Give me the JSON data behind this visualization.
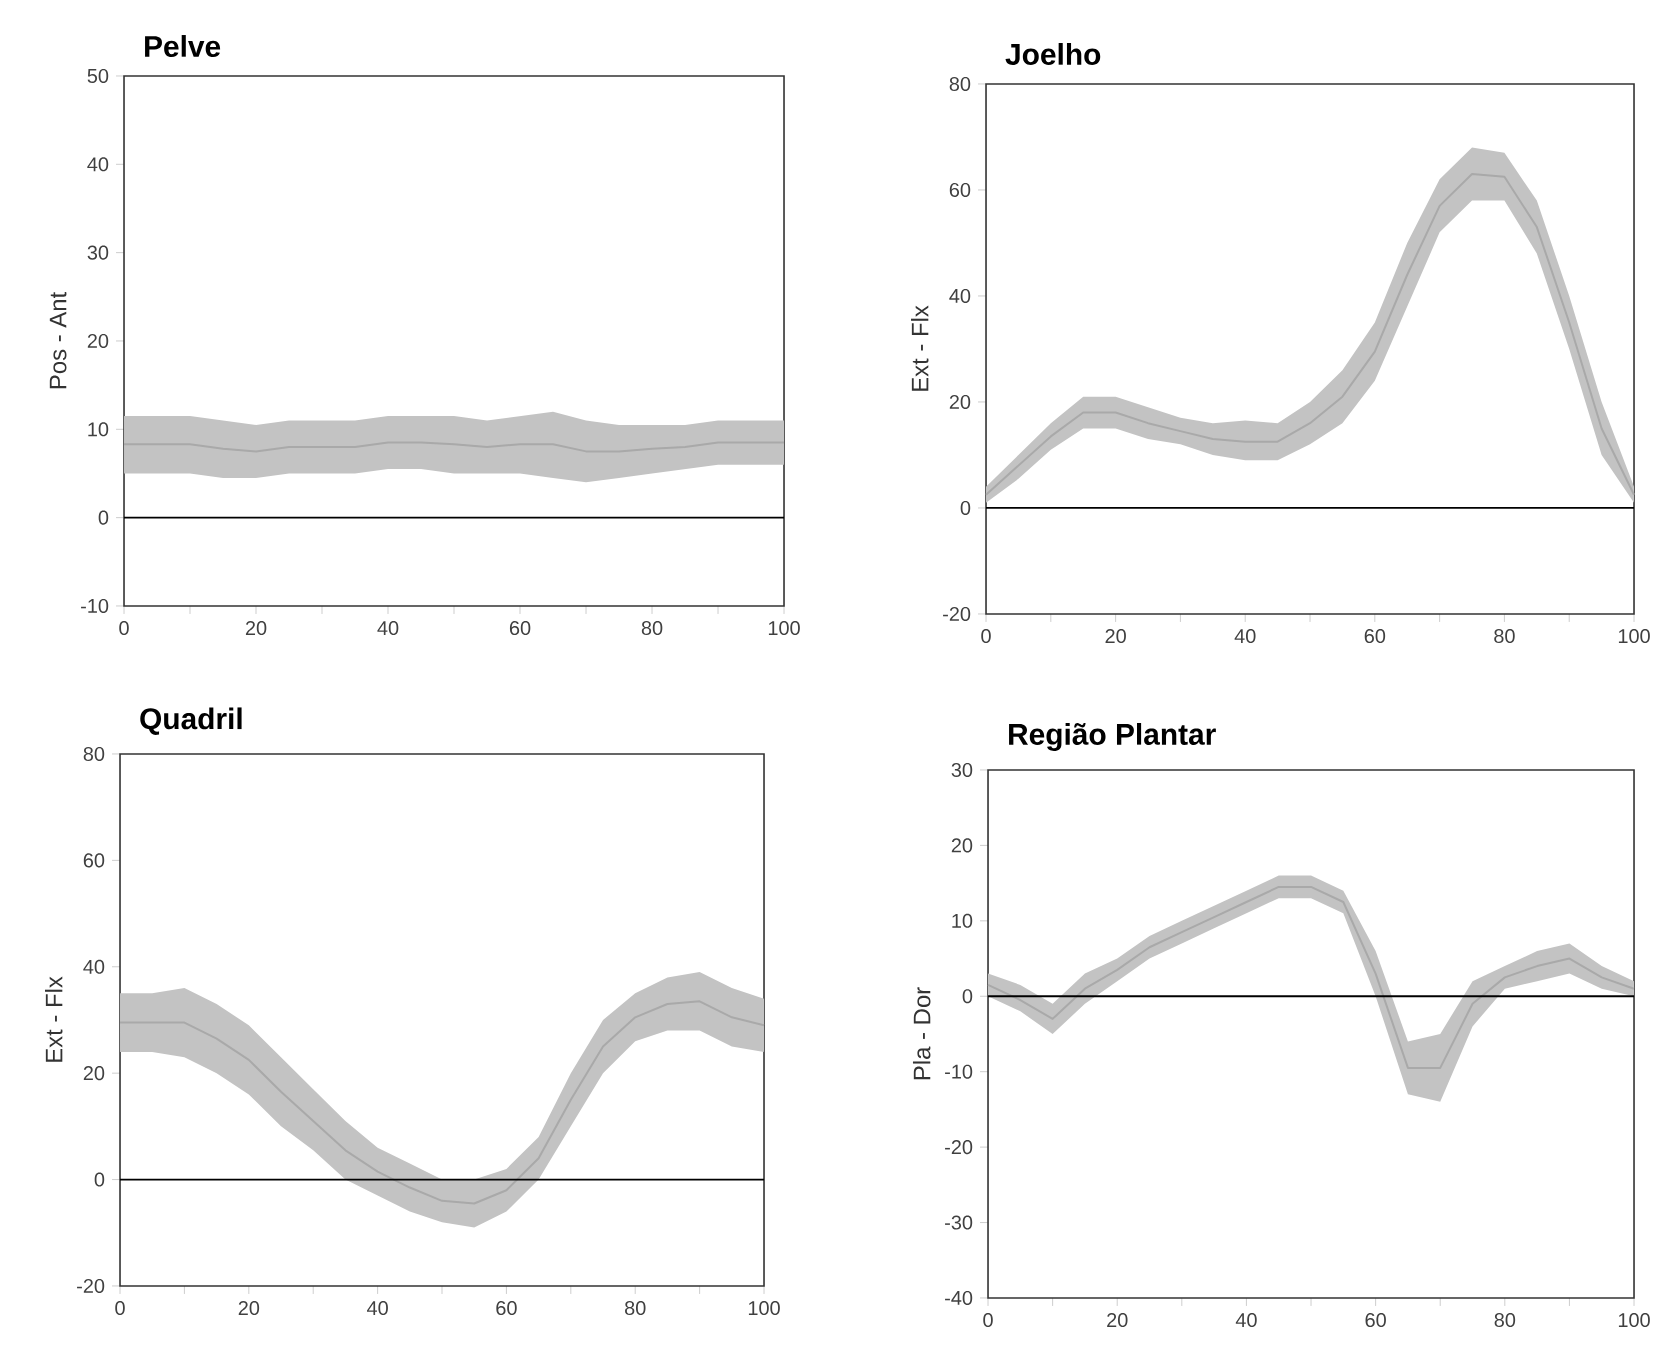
{
  "chart_data": [
    {
      "type": "line",
      "title": "Pelve",
      "ylabel": "Pos - Ant",
      "xlim": [
        0,
        100
      ],
      "ylim": [
        -10,
        50
      ],
      "xticks": [
        0,
        {
          "value": 10,
          "label": null
        },
        20,
        {
          "value": 30,
          "label": null
        },
        40,
        {
          "value": 50,
          "label": null
        },
        60,
        {
          "value": 70,
          "label": null
        },
        80,
        {
          "value": 90,
          "label": null
        },
        100
      ],
      "yticks": [
        -10,
        0,
        10,
        20,
        30,
        40,
        50
      ],
      "ref_lines": [
        {
          "axis": "y",
          "value": 0,
          "color": "#000000"
        }
      ],
      "series": [
        {
          "color": "#a9a9a9",
          "x": [
            0,
            5,
            10,
            15,
            20,
            25,
            30,
            35,
            40,
            45,
            50,
            55,
            60,
            65,
            70,
            75,
            80,
            85,
            90,
            95,
            100
          ],
          "values": [
            8.3,
            8.3,
            8.3,
            7.8,
            7.5,
            8,
            8,
            8,
            8.5,
            8.5,
            8.3,
            8,
            8.3,
            8.3,
            7.5,
            7.5,
            7.8,
            8,
            8.5,
            8.5,
            8.5
          ],
          "lower": [
            5,
            5,
            5,
            4.5,
            4.5,
            5,
            5,
            5,
            5.5,
            5.5,
            5,
            5,
            5,
            4.5,
            4,
            4.5,
            5,
            5.5,
            6,
            6,
            6
          ],
          "upper": [
            11.5,
            11.5,
            11.5,
            11,
            10.5,
            11,
            11,
            11,
            11.5,
            11.5,
            11.5,
            11,
            11.5,
            12,
            11,
            10.5,
            10.5,
            10.5,
            11,
            11,
            11
          ]
        }
      ]
    },
    {
      "type": "line",
      "title": "Joelho",
      "ylabel": "Ext - Flx",
      "xlim": [
        0,
        100
      ],
      "ylim": [
        -20,
        80
      ],
      "xticks": [
        0,
        {
          "value": 10,
          "label": null
        },
        20,
        {
          "value": 30,
          "label": null
        },
        40,
        {
          "value": 50,
          "label": null
        },
        60,
        {
          "value": 70,
          "label": null
        },
        80,
        {
          "value": 90,
          "label": null
        },
        100
      ],
      "yticks": [
        -20,
        0,
        20,
        40,
        60,
        80
      ],
      "ref_lines": [
        {
          "axis": "y",
          "value": 0,
          "color": "#000000"
        }
      ],
      "series": [
        {
          "color": "#a9a9a9",
          "x": [
            0,
            5,
            10,
            15,
            20,
            25,
            30,
            35,
            40,
            45,
            50,
            55,
            60,
            65,
            70,
            75,
            80,
            85,
            90,
            95,
            100
          ],
          "values": [
            2.5,
            8,
            13.5,
            18,
            18,
            16,
            14.5,
            13,
            12.5,
            12.5,
            16,
            21,
            29.5,
            44,
            57,
            63,
            62.5,
            53,
            35,
            15,
            2.5
          ],
          "lower": [
            1,
            5.5,
            11,
            15,
            15,
            13,
            12,
            10,
            9,
            9,
            12,
            16,
            24,
            38,
            52,
            58,
            58,
            48,
            30,
            10,
            1
          ],
          "upper": [
            4,
            10,
            16,
            21,
            21,
            19,
            17,
            16,
            16.5,
            16,
            20,
            26,
            35,
            50,
            62,
            68,
            67,
            58,
            40,
            20,
            4
          ]
        }
      ]
    },
    {
      "type": "line",
      "title": "Quadril",
      "ylabel": "Ext - Flx",
      "xlim": [
        0,
        100
      ],
      "ylim": [
        -20,
        80
      ],
      "xticks": [
        0,
        {
          "value": 10,
          "label": null
        },
        20,
        {
          "value": 30,
          "label": null
        },
        40,
        {
          "value": 50,
          "label": null
        },
        60,
        {
          "value": 70,
          "label": null
        },
        80,
        {
          "value": 90,
          "label": null
        },
        100
      ],
      "yticks": [
        -20,
        0,
        20,
        40,
        60,
        80
      ],
      "ref_lines": [
        {
          "axis": "y",
          "value": 0,
          "color": "#000000"
        }
      ],
      "series": [
        {
          "color": "#a9a9a9",
          "x": [
            0,
            5,
            10,
            15,
            20,
            25,
            30,
            35,
            40,
            45,
            50,
            55,
            60,
            65,
            70,
            75,
            80,
            85,
            90,
            95,
            100
          ],
          "values": [
            29.5,
            29.5,
            29.5,
            26.5,
            22.5,
            16.5,
            11,
            5.5,
            1.5,
            -1.5,
            -4,
            -4.5,
            -2,
            4,
            15,
            25,
            30.5,
            33,
            33.5,
            30.5,
            29
          ],
          "lower": [
            24,
            24,
            23,
            20,
            16,
            10,
            5.5,
            0,
            -3,
            -6,
            -8,
            -9,
            -6,
            0,
            10,
            20,
            26,
            28,
            28,
            25,
            24
          ],
          "upper": [
            35,
            35,
            36,
            33,
            29,
            23,
            17,
            11,
            6,
            3,
            0,
            0,
            2,
            8,
            20,
            30,
            35,
            38,
            39,
            36,
            34
          ]
        }
      ]
    },
    {
      "type": "line",
      "title": "Região Plantar",
      "ylabel": "Pla - Dor",
      "xlim": [
        0,
        100
      ],
      "ylim": [
        -40,
        30
      ],
      "xticks": [
        0,
        {
          "value": 10,
          "label": null
        },
        20,
        {
          "value": 30,
          "label": null
        },
        40,
        {
          "value": 50,
          "label": null
        },
        60,
        {
          "value": 70,
          "label": null
        },
        80,
        {
          "value": 90,
          "label": null
        },
        100
      ],
      "yticks": [
        -40,
        -30,
        -20,
        -10,
        0,
        10,
        20,
        30
      ],
      "ref_lines": [
        {
          "axis": "y",
          "value": 0,
          "color": "#000000"
        }
      ],
      "series": [
        {
          "color": "#a9a9a9",
          "x": [
            0,
            5,
            10,
            15,
            20,
            25,
            30,
            35,
            40,
            45,
            50,
            55,
            60,
            65,
            70,
            75,
            80,
            85,
            90,
            95,
            100
          ],
          "values": [
            1.5,
            -0.5,
            -3,
            1,
            3.5,
            6.5,
            8.5,
            10.5,
            12.5,
            14.5,
            14.5,
            12.5,
            3,
            -9.5,
            -9.5,
            -1,
            2.5,
            4,
            5,
            2.5,
            1
          ],
          "lower": [
            0,
            -2,
            -5,
            -1,
            2,
            5,
            7,
            9,
            11,
            13,
            13,
            11,
            0,
            -13,
            -14,
            -4,
            1,
            2,
            3,
            1,
            0
          ],
          "upper": [
            3,
            1.5,
            -1,
            3,
            5,
            8,
            10,
            12,
            14,
            16,
            16,
            14,
            6,
            -6,
            -5,
            2,
            4,
            6,
            7,
            4,
            2
          ]
        }
      ]
    }
  ]
}
